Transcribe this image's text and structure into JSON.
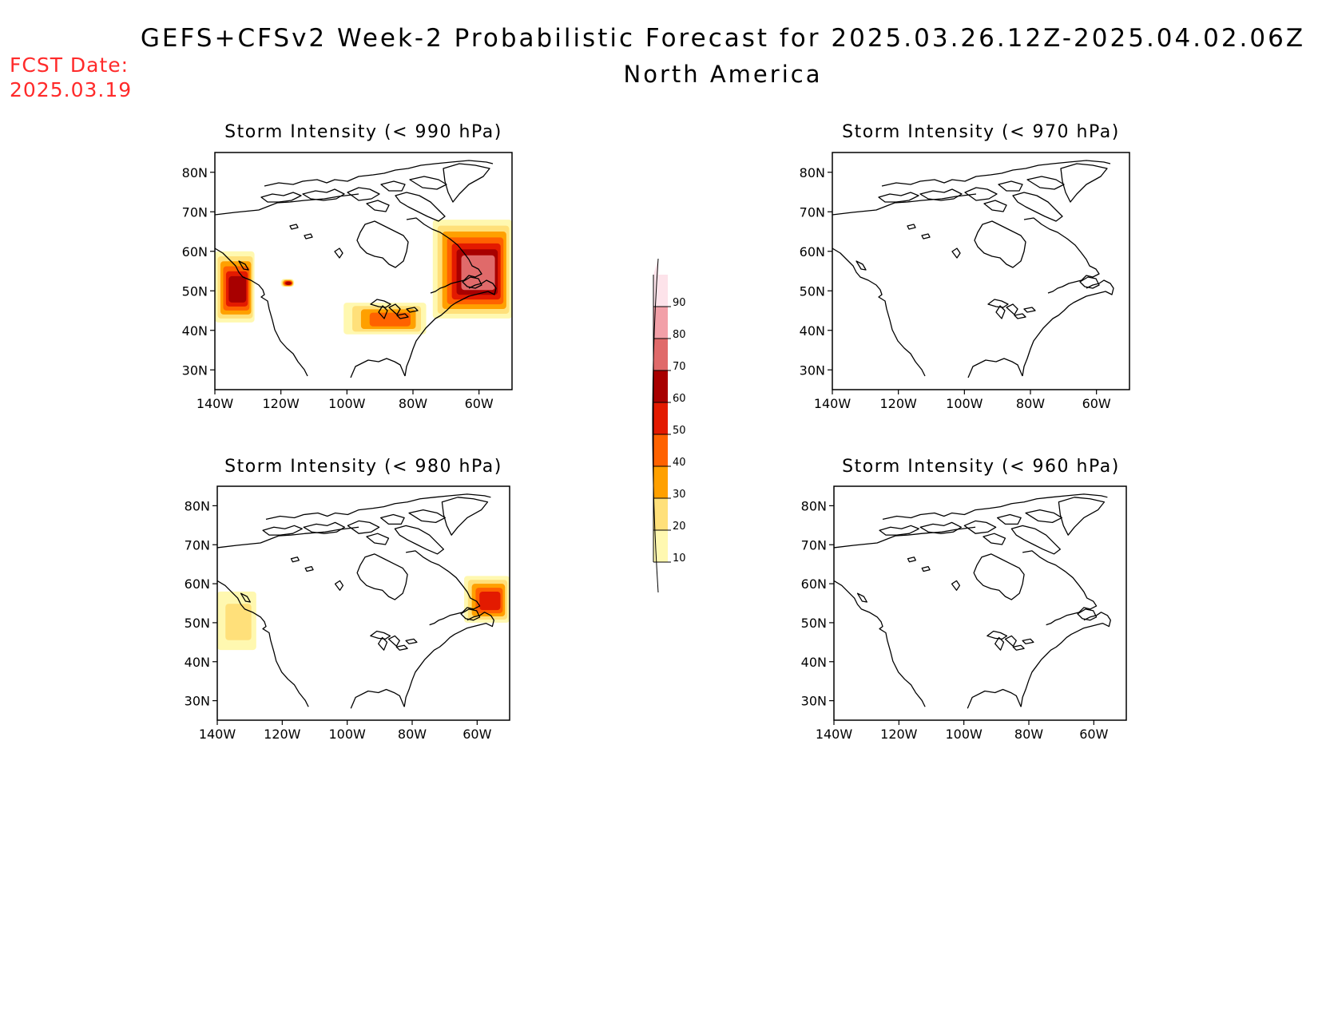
{
  "header": {
    "title": "GEFS+CFSv2 Week-2 Probabilistic Forecast for 2025.03.26.12Z-2025.04.02.06Z",
    "region": "North America",
    "forecast_date_label": "FCST Date:",
    "forecast_date": "2025.03.19"
  },
  "axes": {
    "lat_labels": [
      "30N",
      "40N",
      "50N",
      "60N",
      "70N",
      "80N"
    ],
    "lon_labels": [
      "140W",
      "120W",
      "100W",
      "80W",
      "60W"
    ],
    "lat_range": [
      25,
      85
    ],
    "lon_range": [
      -140,
      -50
    ]
  },
  "panels": [
    {
      "title": "Storm Intensity (< 990 hPa)",
      "threshold_hpa": 990,
      "regions": [
        {
          "area": "Gulf of Alaska / Pacific NW offshore",
          "lon": [
            -140,
            -128
          ],
          "lat": [
            42,
            60
          ],
          "max_prob": 60
        },
        {
          "area": "Southern Canadian Rockies",
          "lon": [
            -120,
            -116
          ],
          "lat": [
            51,
            53
          ],
          "max_prob": 60
        },
        {
          "area": "Upper Midwest / Great Lakes",
          "lon": [
            -101,
            -76
          ],
          "lat": [
            39,
            47
          ],
          "max_prob": 40
        },
        {
          "area": "Atlantic Canada / Labrador Sea",
          "lon": [
            -74,
            -50
          ],
          "lat": [
            43,
            68
          ],
          "max_prob": 70
        }
      ]
    },
    {
      "title": "Storm Intensity (< 970 hPa)",
      "threshold_hpa": 970,
      "regions": []
    },
    {
      "title": "Storm Intensity (< 980 hPa)",
      "threshold_hpa": 980,
      "regions": [
        {
          "area": "NE Pacific offshore",
          "lon": [
            -140,
            -128
          ],
          "lat": [
            43,
            58
          ],
          "max_prob": 20
        },
        {
          "area": "Labrador / Quebec coast",
          "lon": [
            -64,
            -50
          ],
          "lat": [
            50,
            62
          ],
          "max_prob": 50
        }
      ]
    },
    {
      "title": "Storm Intensity (< 960 hPa)",
      "threshold_hpa": 960,
      "regions": []
    }
  ],
  "colorbar": {
    "labels": [
      "10",
      "20",
      "30",
      "40",
      "50",
      "60",
      "70",
      "80",
      "90"
    ],
    "colors": [
      "#fff8b0",
      "#ffe07a",
      "#ffa000",
      "#ff6200",
      "#e31a00",
      "#a80000",
      "#e06a6a",
      "#f2a0a8",
      "#fde3ea"
    ]
  }
}
